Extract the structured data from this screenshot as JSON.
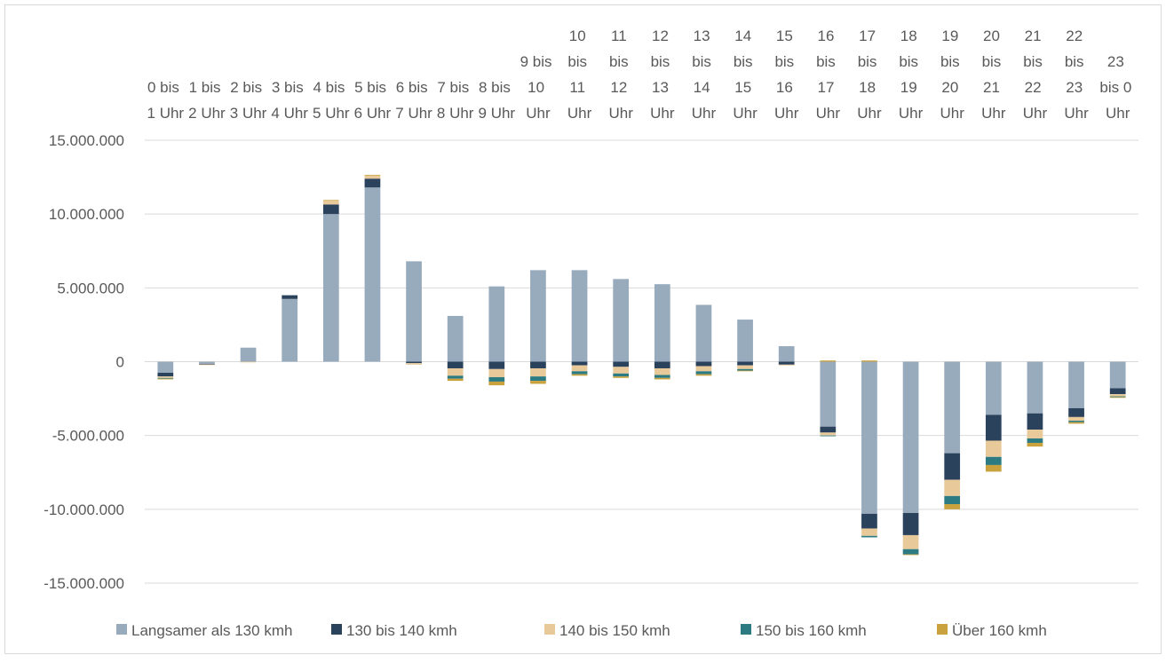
{
  "chart_data": {
    "type": "stacked_bar",
    "categories": [
      "0 bis 1 Uhr",
      "1 bis 2 Uhr",
      "2 bis 3 Uhr",
      "3 bis 4 Uhr",
      "4 bis 5 Uhr",
      "5 bis 6 Uhr",
      "6 bis 7 Uhr",
      "7 bis 8 Uhr",
      "8 bis 9 Uhr",
      "9 bis 10 Uhr",
      "10 bis 11 Uhr",
      "11 bis 12 Uhr",
      "12 bis 13 Uhr",
      "13 bis 14 Uhr",
      "14 bis 15 Uhr",
      "15 bis 16 Uhr",
      "16 bis 17 Uhr",
      "17 bis 18 Uhr",
      "18 bis 19 Uhr",
      "19 bis 20 Uhr",
      "20 bis 21 Uhr",
      "21 bis 22 Uhr",
      "22 bis 23 Uhr",
      "23 bis 0 Uhr"
    ],
    "series": [
      {
        "name": "Langsamer als 130 kmh",
        "color": "#97abbd",
        "values": [
          -750000,
          -150000,
          950000,
          4250000,
          10000000,
          11800000,
          6800000,
          3100000,
          5100000,
          6200000,
          6200000,
          5600000,
          5250000,
          3850000,
          2850000,
          1050000,
          -4400000,
          -10300000,
          -10250000,
          -6200000,
          -3600000,
          -3500000,
          -3150000,
          -1800000
        ]
      },
      {
        "name": "130 bis 140 kmh",
        "color": "#2b425c",
        "values": [
          -250000,
          -30000,
          0,
          250000,
          650000,
          600000,
          -100000,
          -450000,
          -500000,
          -450000,
          -250000,
          -350000,
          -450000,
          -300000,
          -250000,
          -200000,
          -400000,
          -1000000,
          -1500000,
          -1800000,
          -1750000,
          -1100000,
          -600000,
          -400000
        ]
      },
      {
        "name": "140 bis 150 kmh",
        "color": "#e8c99a",
        "values": [
          -100000,
          -50000,
          -50000,
          0,
          250000,
          200000,
          -100000,
          -500000,
          -550000,
          -550000,
          -400000,
          -450000,
          -450000,
          -350000,
          -250000,
          -50000,
          -200000,
          -500000,
          -950000,
          -1100000,
          -1100000,
          -600000,
          -250000,
          -150000
        ]
      },
      {
        "name": "150 bis 160 kmh",
        "color": "#2c7b82",
        "values": [
          -50000,
          0,
          0,
          0,
          0,
          0,
          0,
          -200000,
          -300000,
          -300000,
          -200000,
          -200000,
          -200000,
          -200000,
          -100000,
          0,
          -50000,
          -100000,
          -350000,
          -550000,
          -550000,
          -300000,
          -100000,
          -50000
        ]
      },
      {
        "name": "Über 160 kmh",
        "color": "#c9a13d",
        "values": [
          -50000,
          0,
          0,
          0,
          50000,
          50000,
          0,
          -150000,
          -250000,
          -200000,
          -100000,
          -100000,
          -100000,
          -100000,
          -50000,
          0,
          80000,
          80000,
          -50000,
          -350000,
          -450000,
          -250000,
          -100000,
          -50000
        ]
      }
    ],
    "ylim": [
      -15000000,
      15000000
    ],
    "yticks": [
      {
        "value": -15000000,
        "label": "-15.000.000"
      },
      {
        "value": -10000000,
        "label": "-10.000.000"
      },
      {
        "value": -5000000,
        "label": "-5.000.000"
      },
      0,
      {
        "value": 5000000,
        "label": "5.000.000"
      },
      {
        "value": 10000000,
        "label": "10.000.000"
      },
      {
        "value": 15000000,
        "label": "15.000.000"
      }
    ],
    "grid": true,
    "legend": "bottom"
  }
}
